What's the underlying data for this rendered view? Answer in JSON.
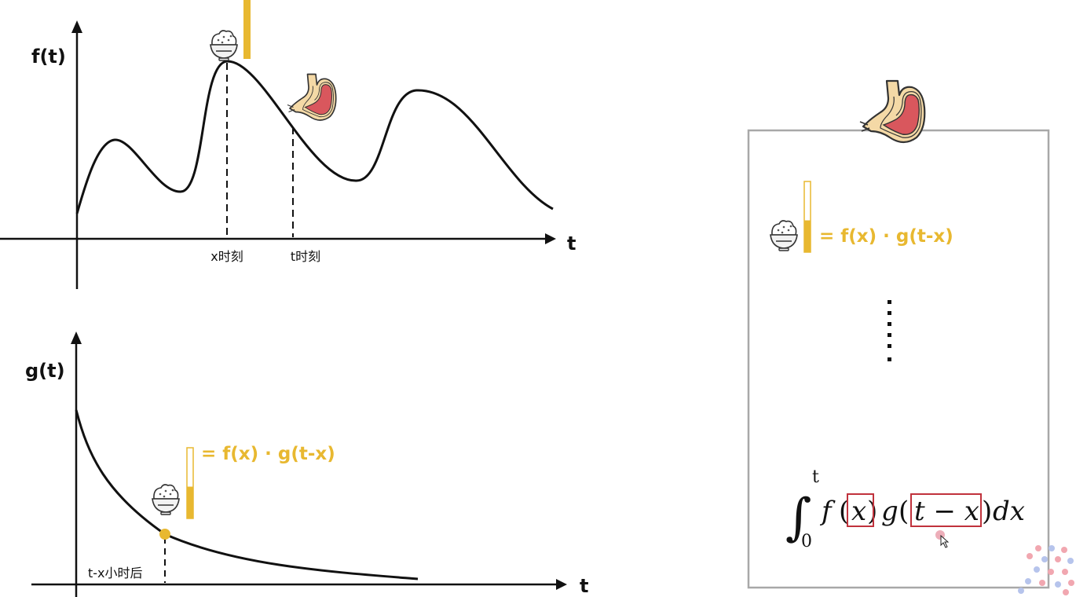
{
  "top_chart": {
    "y_axis_label": "f(t)",
    "x_axis_label": "t",
    "marker_x_label": "x时刻",
    "marker_t_label": "t时刻"
  },
  "bottom_chart": {
    "y_axis_label": "g(t)",
    "x_axis_label": "t",
    "marker_label": "t-x小时后",
    "formula_text": "= f(x) · g(t-x)",
    "bar_fill_fraction": 0.45
  },
  "panel": {
    "formula_text": "= f(x) · g(t-x)",
    "bar_fill_fraction": 0.45,
    "ellipsis": "⋮",
    "integral": {
      "lower_limit": "0",
      "upper_limit": "t",
      "f_name": "f",
      "f_arg": "x",
      "g_name": "g",
      "g_arg": "t − x",
      "differential": "dx"
    }
  },
  "icons": [
    "rice-bowl-icon",
    "stomach-icon",
    "cursor-icon",
    "logo-dots-icon"
  ],
  "colors": {
    "formula_yellow": "#e8b830",
    "highlight_box": "#c0323c",
    "stomach_fill": "#d9575d",
    "stomach_outline": "#f0d38a",
    "panel_border": "#a8a8a8"
  }
}
